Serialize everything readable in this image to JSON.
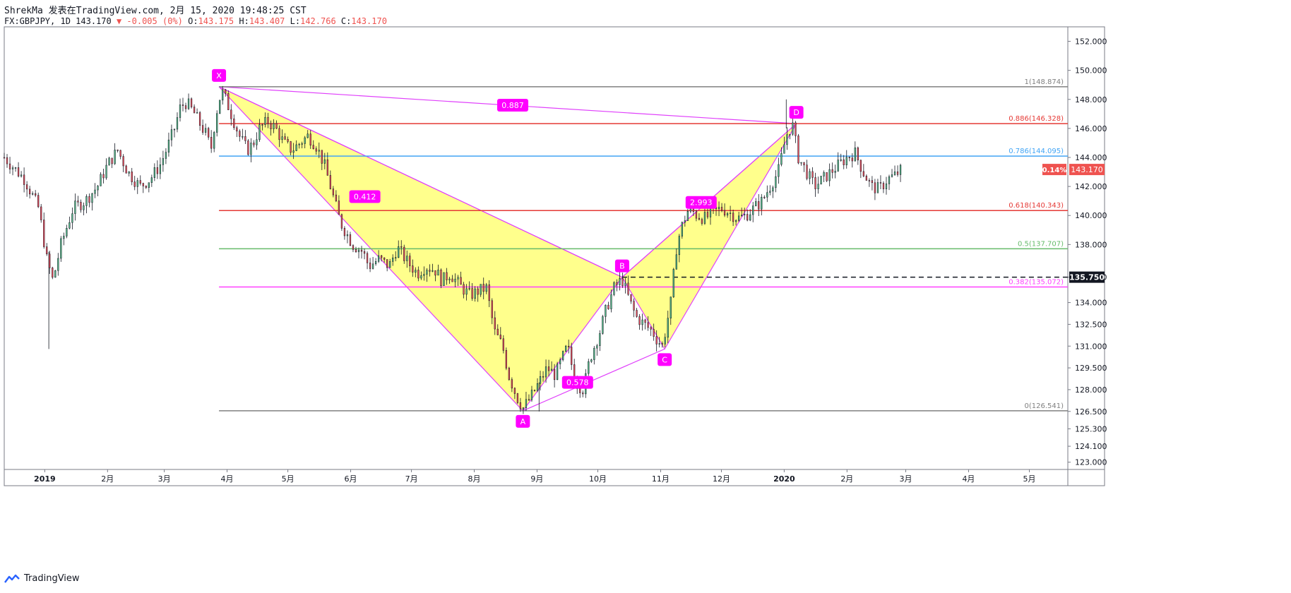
{
  "header": {
    "line1": "ShrekMa 发表在TradingView.com, 2月 15, 2020 19:48:25 CST",
    "symbol": "FX:GBPJPY, 1D 143.170",
    "change": "▼ -0.005 (0%)",
    "open_label": "O:",
    "open": "143.175",
    "high_label": "H:",
    "high": "143.407",
    "low_label": "L:",
    "low": "142.766",
    "close_label": "C:",
    "close": "143.170"
  },
  "brand": {
    "name": "TradingView"
  },
  "colors": {
    "pattern_fill": "#ffff80",
    "pattern_line": "#e040fb",
    "label_bg": "#ff00ff",
    "fib_100": "#808080",
    "fib_886": "#e53935",
    "fib_786": "#42a5f5",
    "fib_618": "#e53935",
    "fib_50": "#66bb6a",
    "fib_382": "#ff40ff",
    "up": "#53b987",
    "down": "#eb4d5c",
    "wick": "#131722"
  },
  "chart_data": {
    "type": "candlestick",
    "symbol": "GBPJPY",
    "timeframe": "1D",
    "ylim": [
      122.5,
      153.0
    ],
    "y_ticks": [
      "123.000",
      "124.100",
      "125.300",
      "126.500",
      "128.000",
      "129.500",
      "131.000",
      "132.500",
      "134.000",
      "135.750",
      "138.000",
      "140.000",
      "142.000",
      "144.000",
      "146.000",
      "148.000",
      "150.000",
      "152.000"
    ],
    "x_ticks": [
      {
        "label": "2019",
        "t": 0
      },
      {
        "label": "2月",
        "t": 31
      },
      {
        "label": "3月",
        "t": 59
      },
      {
        "label": "4月",
        "t": 90
      },
      {
        "label": "5月",
        "t": 120
      },
      {
        "label": "6月",
        "t": 151
      },
      {
        "label": "7月",
        "t": 181
      },
      {
        "label": "8月",
        "t": 212
      },
      {
        "label": "9月",
        "t": 243
      },
      {
        "label": "10月",
        "t": 273
      },
      {
        "label": "11月",
        "t": 304
      },
      {
        "label": "12月",
        "t": 334
      },
      {
        "label": "2020",
        "t": 365
      },
      {
        "label": "2月",
        "t": 396
      },
      {
        "label": "3月",
        "t": 425
      },
      {
        "label": "4月",
        "t": 456
      },
      {
        "label": "5月",
        "t": 486
      }
    ],
    "x_range": [
      -20,
      505
    ],
    "close_series": [
      [
        -20,
        144.0
      ],
      [
        -10,
        142.5
      ],
      [
        -3,
        140.5
      ],
      [
        1,
        137.0
      ],
      [
        4,
        135.5
      ],
      [
        8,
        138.0
      ],
      [
        14,
        140.5
      ],
      [
        20,
        141.0
      ],
      [
        26,
        142.0
      ],
      [
        31,
        143.5
      ],
      [
        36,
        144.5
      ],
      [
        41,
        143.0
      ],
      [
        47,
        142.0
      ],
      [
        52,
        142.5
      ],
      [
        57,
        143.5
      ],
      [
        60,
        144.5
      ],
      [
        64,
        146.0
      ],
      [
        67,
        147.5
      ],
      [
        70,
        147.8
      ],
      [
        74,
        147.0
      ],
      [
        77,
        146.2
      ],
      [
        80,
        145.5
      ],
      [
        82,
        144.5
      ],
      [
        84,
        146.5
      ],
      [
        86,
        148.0
      ],
      [
        88,
        148.5
      ],
      [
        92,
        147.0
      ],
      [
        96,
        145.5
      ],
      [
        100,
        144.5
      ],
      [
        103,
        145.0
      ],
      [
        106,
        146.0
      ],
      [
        110,
        146.5
      ],
      [
        114,
        146.0
      ],
      [
        118,
        145.0
      ],
      [
        122,
        144.5
      ],
      [
        126,
        145.0
      ],
      [
        130,
        145.5
      ],
      [
        134,
        144.8
      ],
      [
        138,
        143.5
      ],
      [
        142,
        141.5
      ],
      [
        146,
        139.5
      ],
      [
        152,
        138.0
      ],
      [
        157,
        137.5
      ],
      [
        160,
        136.5
      ],
      [
        165,
        137.0
      ],
      [
        170,
        136.5
      ],
      [
        174,
        137.8
      ],
      [
        179,
        136.8
      ],
      [
        184,
        136.0
      ],
      [
        188,
        136.5
      ],
      [
        193,
        136.2
      ],
      [
        196,
        135.5
      ],
      [
        200,
        136.0
      ],
      [
        206,
        135.0
      ],
      [
        210,
        134.5
      ],
      [
        214,
        134.8
      ],
      [
        218,
        135.0
      ],
      [
        222,
        132.0
      ],
      [
        226,
        131.0
      ],
      [
        229,
        129.0
      ],
      [
        233,
        127.5
      ],
      [
        236,
        126.7
      ],
      [
        240,
        127.5
      ],
      [
        244,
        128.5
      ],
      [
        248,
        129.5
      ],
      [
        252,
        129.0
      ],
      [
        255,
        130.0
      ],
      [
        258,
        131.0
      ],
      [
        262,
        128.5
      ],
      [
        266,
        128.0
      ],
      [
        268,
        129.5
      ],
      [
        270,
        130.5
      ],
      [
        274,
        132.0
      ],
      [
        277,
        133.5
      ],
      [
        281,
        135.0
      ],
      [
        285,
        135.6
      ],
      [
        289,
        134.0
      ],
      [
        292,
        133.0
      ],
      [
        296,
        132.5
      ],
      [
        300,
        132.0
      ],
      [
        302,
        131.5
      ],
      [
        305,
        131.0
      ],
      [
        309,
        134.0
      ],
      [
        312,
        138.0
      ],
      [
        315,
        139.5
      ],
      [
        318,
        140.5
      ],
      [
        322,
        140.0
      ],
      [
        326,
        139.8
      ],
      [
        330,
        140.2
      ],
      [
        334,
        140.5
      ],
      [
        338,
        140.2
      ],
      [
        342,
        139.8
      ],
      [
        346,
        140.0
      ],
      [
        350,
        140.5
      ],
      [
        354,
        141.0
      ],
      [
        358,
        142.0
      ],
      [
        362,
        143.0
      ],
      [
        366,
        145.5
      ],
      [
        369,
        146.3
      ],
      [
        372,
        144.0
      ],
      [
        376,
        143.0
      ],
      [
        380,
        142.0
      ],
      [
        384,
        142.5
      ],
      [
        388,
        143.0
      ],
      [
        392,
        143.5
      ],
      [
        396,
        144.0
      ],
      [
        400,
        144.3
      ],
      [
        404,
        143.0
      ],
      [
        408,
        142.0
      ],
      [
        412,
        141.8
      ],
      [
        416,
        142.5
      ],
      [
        420,
        142.8
      ],
      [
        423,
        143.17
      ]
    ],
    "harmonic_pattern": {
      "points": [
        {
          "label": "X",
          "t": 86,
          "y": 148.874
        },
        {
          "label": "A",
          "t": 236,
          "y": 126.541
        },
        {
          "label": "B",
          "t": 285,
          "y": 135.75
        },
        {
          "label": "C",
          "t": 306,
          "y": 130.8
        },
        {
          "label": "D",
          "t": 371,
          "y": 146.328
        }
      ],
      "ratios": [
        {
          "text": "0.412",
          "t": 158,
          "y": 141.3
        },
        {
          "text": "0.578",
          "t": 263,
          "y": 128.5
        },
        {
          "text": "2.993",
          "t": 324,
          "y": 140.9
        },
        {
          "text": "0.887",
          "t": 231,
          "y": 147.6
        }
      ]
    },
    "fib_levels": [
      {
        "text": "1(148.874)",
        "value": 148.874,
        "color_key": "fib_100"
      },
      {
        "text": "0.886(146.328)",
        "value": 146.328,
        "color_key": "fib_886"
      },
      {
        "text": "0.786(144.095)",
        "value": 144.095,
        "color_key": "fib_786"
      },
      {
        "text": "0.618(140.343)",
        "value": 140.343,
        "color_key": "fib_618"
      },
      {
        "text": "0.5(137.707)",
        "value": 137.707,
        "color_key": "fib_50"
      },
      {
        "text": "0.382(135.072)",
        "value": 135.072,
        "color_key": "fib_382"
      },
      {
        "text": "0(126.541)",
        "value": 126.541,
        "color_key": "fib_100"
      }
    ],
    "fib_start_t": 86,
    "dashed_level": {
      "value": 135.75,
      "label": "135.750",
      "start_t": 285
    },
    "last_price": {
      "value": 143.17,
      "label": "143.170",
      "change": "0.14%"
    }
  }
}
